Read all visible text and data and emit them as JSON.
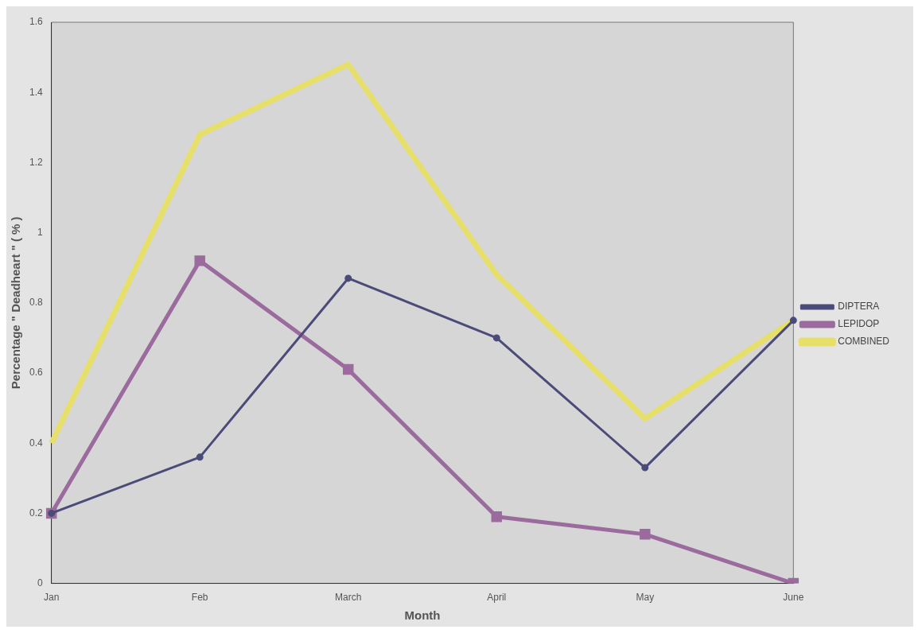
{
  "chart_data": {
    "type": "line",
    "xlabel": "Month",
    "ylabel": "Percentage \" Deadheart \" ( % )",
    "categories": [
      "Jan",
      "Feb",
      "March",
      "April",
      "May",
      "June"
    ],
    "series": [
      {
        "name": "DIPTERA",
        "color": "#4b4b7a",
        "marker": "circle",
        "values": [
          0.2,
          0.36,
          0.87,
          0.7,
          0.33,
          0.75
        ]
      },
      {
        "name": "LEPIDOP",
        "color": "#9b6b9e",
        "marker": "square",
        "values": [
          0.2,
          0.92,
          0.61,
          0.19,
          0.14,
          0
        ]
      },
      {
        "name": "COMBINED",
        "color": "#e6df6a",
        "marker": "none",
        "values": [
          0.4,
          1.28,
          1.48,
          0.88,
          0.47,
          0.75
        ]
      }
    ],
    "ylim": [
      0,
      1.6
    ],
    "yticks": [
      0,
      0.2,
      0.4,
      0.6,
      0.8,
      1,
      1.2,
      1.4,
      1.6
    ],
    "grid": false,
    "legend": "right"
  }
}
